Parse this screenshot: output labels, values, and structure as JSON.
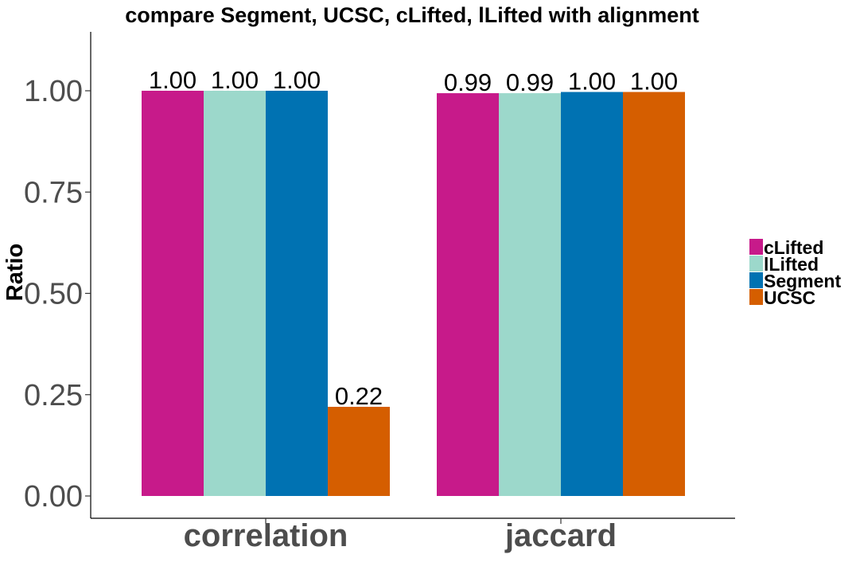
{
  "chart_data": {
    "type": "bar",
    "title": "compare Segment, UCSC, cLifted, lLifted with alignment",
    "xlabel": "",
    "ylabel": "Ratio",
    "categories": [
      "correlation",
      "jaccard"
    ],
    "ylim": [
      0,
      1.12
    ],
    "yticks": [
      "0.00",
      "0.25",
      "0.50",
      "0.75",
      "1.00"
    ],
    "grid": false,
    "legend_position": "right",
    "series": [
      {
        "name": "cLifted",
        "color": "#c71a8a",
        "values": [
          1.0,
          0.994
        ],
        "labels": [
          "1.00",
          "0.99"
        ]
      },
      {
        "name": "lLifted",
        "color": "#9cd8cb",
        "values": [
          1.0,
          0.994
        ],
        "labels": [
          "1.00",
          "0.99"
        ]
      },
      {
        "name": "Segment",
        "color": "#0072b2",
        "values": [
          1.0,
          0.997
        ],
        "labels": [
          "1.00",
          "1.00"
        ]
      },
      {
        "name": "UCSC",
        "color": "#d55e00",
        "values": [
          0.22,
          0.997
        ],
        "labels": [
          "0.22",
          "1.00"
        ]
      }
    ]
  }
}
